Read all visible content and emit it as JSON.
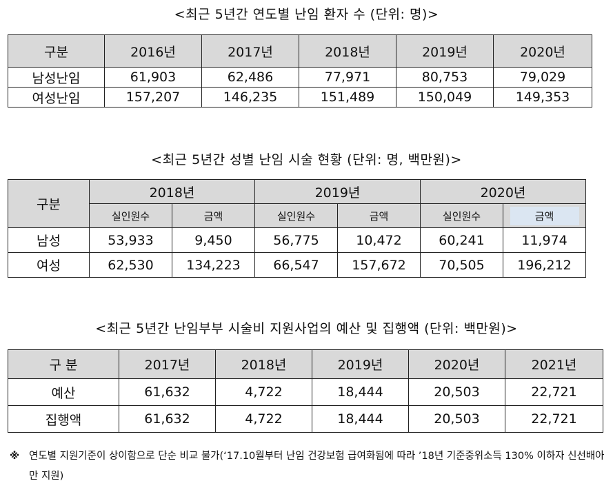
{
  "table1": {
    "title": "<최근 5년간 연도별 난임 환자 수 (단위: 명)>",
    "headers": [
      "구분",
      "2016년",
      "2017년",
      "2018년",
      "2019년",
      "2020년"
    ],
    "rows": [
      {
        "label": "남성난임",
        "values": [
          "61,903",
          "62,486",
          "77,971",
          "80,753",
          "79,029"
        ]
      },
      {
        "label": "여성난임",
        "values": [
          "157,207",
          "146,235",
          "151,489",
          "150,049",
          "149,353"
        ]
      }
    ]
  },
  "table2": {
    "title": "<최근 5년간 성별 난임 시술 현황 (단위: 명, 백만원)>",
    "gubun": "구분",
    "years": [
      "2018년",
      "2019년",
      "2020년"
    ],
    "sub_headers": [
      "실인원수",
      "금액",
      "실인원수",
      "금액",
      "실인원수",
      "금액"
    ],
    "rows": [
      {
        "label": "남성",
        "values": [
          "53,933",
          "9,450",
          "56,775",
          "10,472",
          "60,241",
          "11,974"
        ]
      },
      {
        "label": "여성",
        "values": [
          "62,530",
          "134,223",
          "66,547",
          "157,672",
          "70,505",
          "196,212"
        ]
      }
    ]
  },
  "table3": {
    "title": "<최근 5년간 난임부부 시술비 지원사업의 예산 및 집행액 (단위: 백만원)>",
    "headers": [
      "구 분",
      "2017년",
      "2018년",
      "2019년",
      "2020년",
      "2021년"
    ],
    "rows": [
      {
        "label": "예산",
        "values": [
          "61,632",
          "4,722",
          "18,444",
          "20,503",
          "22,721"
        ]
      },
      {
        "label": "집행액",
        "values": [
          "61,632",
          "4,722",
          "18,444",
          "20,503",
          "22,721"
        ]
      }
    ]
  },
  "note": {
    "mark": "※",
    "text": "연도별 지원기준이 상이함으로 단순 비교 불가(‘17.10월부터 난임 건강보험 급여화됨에 따라 ’18년 기준중위소득 130% 이하자 신선배아만 지원)"
  }
}
